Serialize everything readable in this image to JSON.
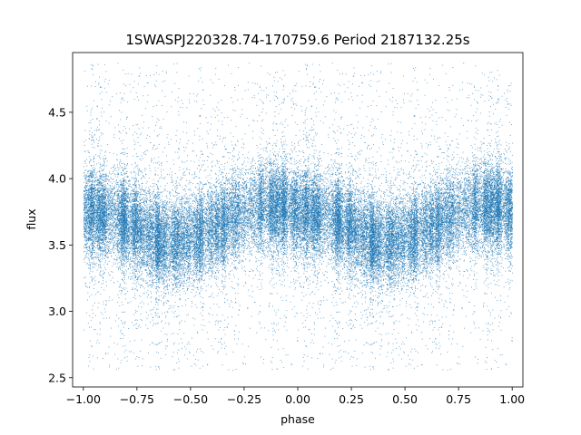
{
  "chart_data": {
    "type": "scatter",
    "title": "1SWASPJ220328.74-170759.6 Period 2187132.25s",
    "xlabel": "phase",
    "ylabel": "flux",
    "xlim": [
      -1.05,
      1.05
    ],
    "ylim": [
      2.43,
      4.95
    ],
    "x_ticks": [
      -1.0,
      -0.75,
      -0.5,
      -0.25,
      0.0,
      0.25,
      0.5,
      0.75,
      1.0
    ],
    "x_tick_labels": [
      "−1.00",
      "−0.75",
      "−0.50",
      "−0.25",
      "0.00",
      "0.25",
      "0.50",
      "0.75",
      "1.00"
    ],
    "y_ticks": [
      2.5,
      3.0,
      3.5,
      4.0,
      4.5
    ],
    "y_tick_labels": [
      "2.5",
      "3.0",
      "3.5",
      "4.0",
      "4.5"
    ],
    "grid": false,
    "point_color": "#1f77b4",
    "series": [
      {
        "phase": [
          -1.0,
          -0.9,
          -0.8,
          -0.7,
          -0.6,
          -0.5,
          -0.4,
          -0.3,
          -0.2,
          -0.1,
          0.0,
          0.1,
          0.2,
          0.3,
          0.4,
          0.5,
          0.6,
          0.7,
          0.8,
          0.9,
          1.0
        ],
        "flux_median": [
          3.75,
          3.73,
          3.68,
          3.58,
          3.52,
          3.55,
          3.62,
          3.7,
          3.78,
          3.8,
          3.75,
          3.73,
          3.68,
          3.58,
          3.52,
          3.55,
          3.62,
          3.7,
          3.78,
          3.8,
          3.75
        ],
        "flux_spread": 0.3,
        "outlier_range": [
          2.55,
          4.88
        ],
        "n_points": 24000
      }
    ]
  }
}
